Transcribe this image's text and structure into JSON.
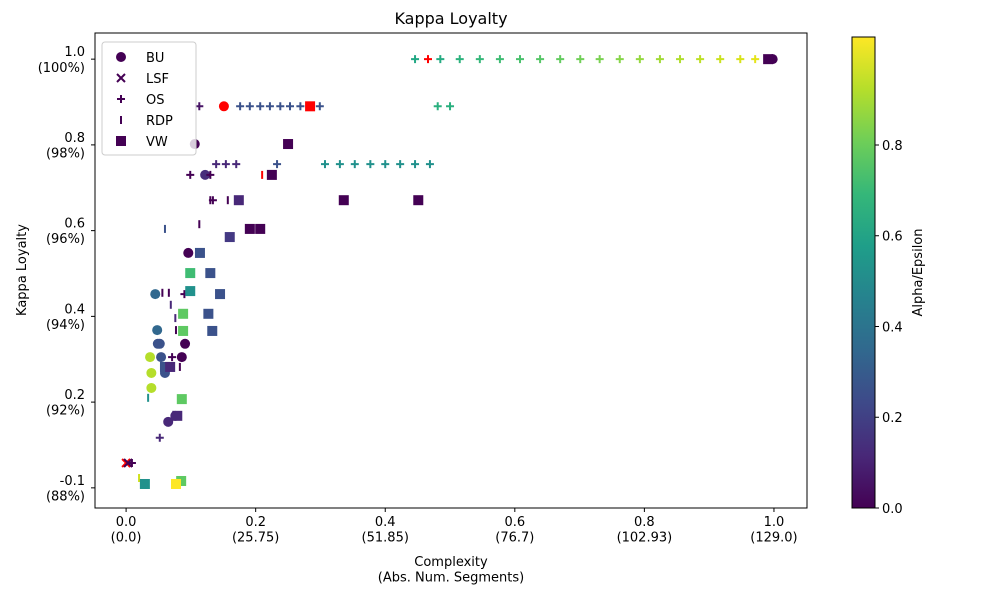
{
  "chart_data": {
    "type": "scatter",
    "title": "Kappa Loyalty",
    "x_label": "Complexity\n(Abs. Num. Segments)",
    "y_label": "Kappa Loyalty",
    "xlim": [
      -0.048,
      1.051
    ],
    "ylim": [
      -0.047,
      1.061
    ],
    "xticks": [
      {
        "value": 0,
        "label": "0.0\n(0.0)"
      },
      {
        "value": 0.2,
        "label": "0.2\n(25.75)"
      },
      {
        "value": 0.4,
        "label": "0.4\n(51.85)"
      },
      {
        "value": 0.6,
        "label": "0.6\n(76.7)"
      },
      {
        "value": 0.8,
        "label": "0.8\n(102.93)"
      },
      {
        "value": 1,
        "label": "1.0\n(129.0)"
      }
    ],
    "yticks": [
      {
        "value": 1,
        "label": "1.0\n(100%)"
      },
      {
        "value": 0.8,
        "label": "0.8\n(98%)"
      },
      {
        "value": 0.6,
        "label": "0.6\n(96%)"
      },
      {
        "value": 0.4,
        "label": "0.4\n(94%)"
      },
      {
        "value": 0.2,
        "label": "0.2\n(92%)"
      },
      {
        "value": 0,
        "label": "-0.1\n(88%)"
      }
    ],
    "legend": "upper left",
    "colorbar": {
      "label": "Alpha/Epsilon",
      "lim": [
        0,
        1.038
      ],
      "ticks": [
        {
          "value": 0,
          "label": "0.0"
        },
        0.2,
        0.4,
        0.6,
        0.8
      ]
    },
    "series": [
      {
        "name": "BU",
        "marker": "circle",
        "x": [
          0.998,
          0.151,
          0.106,
          0.122,
          0.096,
          0.045,
          0.048,
          0.049,
          0.052,
          0.091,
          0.037,
          0.054,
          0.086,
          0.039,
          0.06,
          0.039,
          0.065,
          0.076
        ],
        "values": [
          1.0,
          0.89,
          0.802,
          0.73,
          0.548,
          0.452,
          0.368,
          0.336,
          0.336,
          0.336,
          0.305,
          0.305,
          0.305,
          0.268,
          0.268,
          0.233,
          0.154,
          0.168
        ],
        "colors": [
          "#440154",
          "#ff0000",
          "#440154",
          "#472d7b",
          "#440154",
          "#31688e",
          "#31688e",
          "#3b528b",
          "#3b528b",
          "#440154",
          "#b5de2b",
          "#3b528b",
          "#440154",
          "#b5de2b",
          "#3b528b",
          "#b5de2b",
          "#482878",
          "#482878"
        ]
      },
      {
        "name": "LSF",
        "marker": "x",
        "x": [
          0.0,
          0.003
        ],
        "values": [
          0.058,
          0.058
        ],
        "colors": [
          "#ff0000",
          "#440154"
        ]
      },
      {
        "name": "OS",
        "marker": "plus",
        "x": [
          0.446,
          0.466,
          0.485,
          0.515,
          0.546,
          0.577,
          0.608,
          0.639,
          0.67,
          0.701,
          0.731,
          0.762,
          0.793,
          0.824,
          0.855,
          0.886,
          0.917,
          0.948,
          0.971,
          0.113,
          0.176,
          0.191,
          0.207,
          0.222,
          0.238,
          0.253,
          0.269,
          0.299,
          0.481,
          0.5,
          0.139,
          0.154,
          0.17,
          0.233,
          0.307,
          0.33,
          0.353,
          0.377,
          0.4,
          0.423,
          0.446,
          0.469,
          0.099,
          0.13,
          0.134,
          0.09,
          0.071,
          0.052,
          0.009
        ],
        "values": [
          1.0,
          1.0,
          1.0,
          1.0,
          1.0,
          1.0,
          1.0,
          1.0,
          1.0,
          1.0,
          1.0,
          1.0,
          1.0,
          1.0,
          1.0,
          1.0,
          1.0,
          1.0,
          1.0,
          0.89,
          0.89,
          0.89,
          0.89,
          0.89,
          0.89,
          0.89,
          0.89,
          0.89,
          0.89,
          0.89,
          0.755,
          0.755,
          0.755,
          0.755,
          0.755,
          0.755,
          0.755,
          0.755,
          0.755,
          0.755,
          0.755,
          0.755,
          0.73,
          0.73,
          0.671,
          0.452,
          0.305,
          0.117,
          0.058
        ],
        "colors": [
          "#22a884",
          "#ff0000",
          "#25ab82",
          "#2db27d",
          "#35b779",
          "#3fbc73",
          "#4ac16d",
          "#56c667",
          "#63cb5f",
          "#70cf57",
          "#7ad151",
          "#86d549",
          "#95d840",
          "#a2da37",
          "#b0dd2f",
          "#bddf26",
          "#cae11f",
          "#d8e219",
          "#e5e419",
          "#471365",
          "#3b528b",
          "#3b528b",
          "#3b528b",
          "#3b528b",
          "#3b528b",
          "#3b528b",
          "#3b528b",
          "#3b528b",
          "#2ab07f",
          "#2ab07f",
          "#482878",
          "#482878",
          "#482878",
          "#3b528b",
          "#21918c",
          "#21918c",
          "#21918c",
          "#21918c",
          "#21918c",
          "#21918c",
          "#21918c",
          "#21918c",
          "#440154",
          "#440154",
          "#440154",
          "#440154",
          "#440154",
          "#482878",
          "#440154"
        ]
      },
      {
        "name": "RDP",
        "marker": "vline",
        "x": [
          0.21,
          0.13,
          0.157,
          0.06,
          0.113,
          0.056,
          0.066,
          0.069,
          0.076,
          0.077,
          0.083,
          0.034,
          0.02,
          0.031
        ],
        "values": [
          0.73,
          0.671,
          0.671,
          0.604,
          0.615,
          0.455,
          0.455,
          0.427,
          0.396,
          0.368,
          0.282,
          0.21,
          0.023,
          0.007
        ],
        "colors": [
          "#ff0000",
          "#440154",
          "#440154",
          "#3b528b",
          "#440154",
          "#440154",
          "#440154",
          "#482878",
          "#482878",
          "#440154",
          "#440154",
          "#21918c",
          "#d0e11c",
          "#21918c"
        ]
      },
      {
        "name": "VW",
        "marker": "square",
        "x": [
          0.991,
          0.284,
          0.25,
          0.225,
          0.174,
          0.336,
          0.451,
          0.191,
          0.207,
          0.16,
          0.114,
          0.099,
          0.13,
          0.099,
          0.145,
          0.088,
          0.127,
          0.088,
          0.133,
          0.06,
          0.068,
          0.086,
          0.079,
          0.085,
          0.077,
          0.029
        ],
        "values": [
          1.0,
          0.89,
          0.802,
          0.73,
          0.671,
          0.671,
          0.671,
          0.604,
          0.604,
          0.585,
          0.548,
          0.501,
          0.501,
          0.459,
          0.452,
          0.406,
          0.406,
          0.366,
          0.366,
          0.282,
          0.282,
          0.207,
          0.168,
          0.016,
          0.009,
          0.009
        ],
        "colors": [
          "#440154",
          "#ff0000",
          "#440154",
          "#440154",
          "#482878",
          "#440154",
          "#440154",
          "#440154",
          "#440154",
          "#443983",
          "#3b528b",
          "#3fbc73",
          "#3b528b",
          "#21918c",
          "#3b528b",
          "#5ec962",
          "#3b528b",
          "#5ec962",
          "#3b528b",
          "#3b528b",
          "#482878",
          "#5ec962",
          "#482878",
          "#5ec962",
          "#fde725",
          "#21918c"
        ]
      }
    ]
  }
}
